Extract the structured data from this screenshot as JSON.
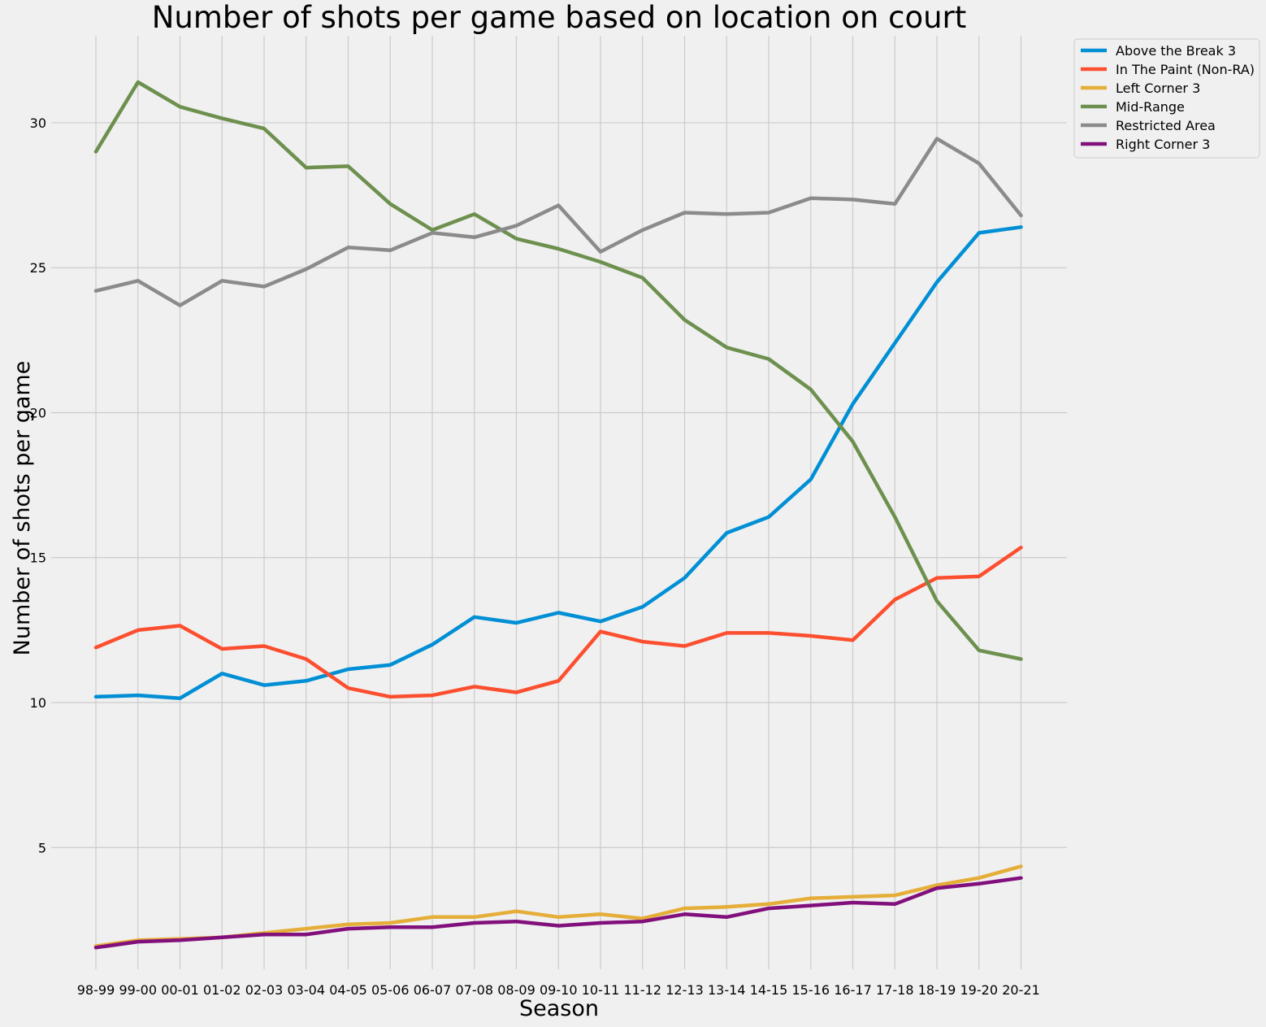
{
  "chart_data": {
    "type": "line",
    "title": "Number of shots per game based on location on court",
    "xlabel": "Season",
    "ylabel": "Number of shots per game",
    "ylim": [
      0.8,
      33.0
    ],
    "yticks": [
      5,
      10,
      15,
      20,
      25,
      30
    ],
    "grid": true,
    "legend_position": "top-right outside",
    "categories": [
      "98-99",
      "99-00",
      "00-01",
      "01-02",
      "02-03",
      "03-04",
      "04-05",
      "05-06",
      "06-07",
      "07-08",
      "08-09",
      "09-10",
      "10-11",
      "11-12",
      "12-13",
      "13-14",
      "14-15",
      "15-16",
      "16-17",
      "17-18",
      "18-19",
      "19-20",
      "20-21"
    ],
    "series": [
      {
        "name": "Above the Break 3",
        "color": "#008fd5",
        "values": [
          10.2,
          10.25,
          10.15,
          11.0,
          10.6,
          10.75,
          11.15,
          11.3,
          12.0,
          12.95,
          12.75,
          13.1,
          12.8,
          13.3,
          14.3,
          15.85,
          16.4,
          17.7,
          20.3,
          22.4,
          24.5,
          26.2,
          26.4
        ]
      },
      {
        "name": "In The Paint (Non-RA)",
        "color": "#fc4f30",
        "values": [
          11.9,
          12.5,
          12.65,
          11.85,
          11.95,
          11.5,
          10.5,
          10.2,
          10.25,
          10.55,
          10.35,
          10.75,
          12.45,
          12.1,
          11.95,
          12.4,
          12.4,
          12.3,
          12.15,
          13.55,
          14.3,
          14.35,
          15.35
        ]
      },
      {
        "name": "Left Corner 3",
        "color": "#e5ae38",
        "values": [
          1.6,
          1.8,
          1.85,
          1.9,
          2.05,
          2.2,
          2.35,
          2.4,
          2.6,
          2.6,
          2.8,
          2.6,
          2.7,
          2.55,
          2.9,
          2.95,
          3.05,
          3.25,
          3.3,
          3.35,
          3.7,
          3.95,
          4.35
        ]
      },
      {
        "name": "Mid-Range",
        "color": "#6d904f",
        "values": [
          29.0,
          31.4,
          30.55,
          30.15,
          29.8,
          28.45,
          28.5,
          27.2,
          26.3,
          26.85,
          26.0,
          25.65,
          25.2,
          24.65,
          23.2,
          22.25,
          21.85,
          20.8,
          19.0,
          16.4,
          13.5,
          11.8,
          11.5
        ]
      },
      {
        "name": "Restricted Area",
        "color": "#8b8b8b",
        "values": [
          24.2,
          24.55,
          23.7,
          24.55,
          24.35,
          24.95,
          25.7,
          25.6,
          26.2,
          26.05,
          26.45,
          27.15,
          25.55,
          26.3,
          26.9,
          26.85,
          26.9,
          27.4,
          27.35,
          27.2,
          29.45,
          28.6,
          26.8
        ]
      },
      {
        "name": "Right Corner 3",
        "color": "#810f7c",
        "values": [
          1.55,
          1.75,
          1.8,
          1.9,
          2.0,
          2.0,
          2.2,
          2.25,
          2.25,
          2.4,
          2.45,
          2.3,
          2.4,
          2.45,
          2.7,
          2.6,
          2.9,
          3.0,
          3.1,
          3.05,
          3.6,
          3.75,
          3.95
        ]
      }
    ]
  }
}
